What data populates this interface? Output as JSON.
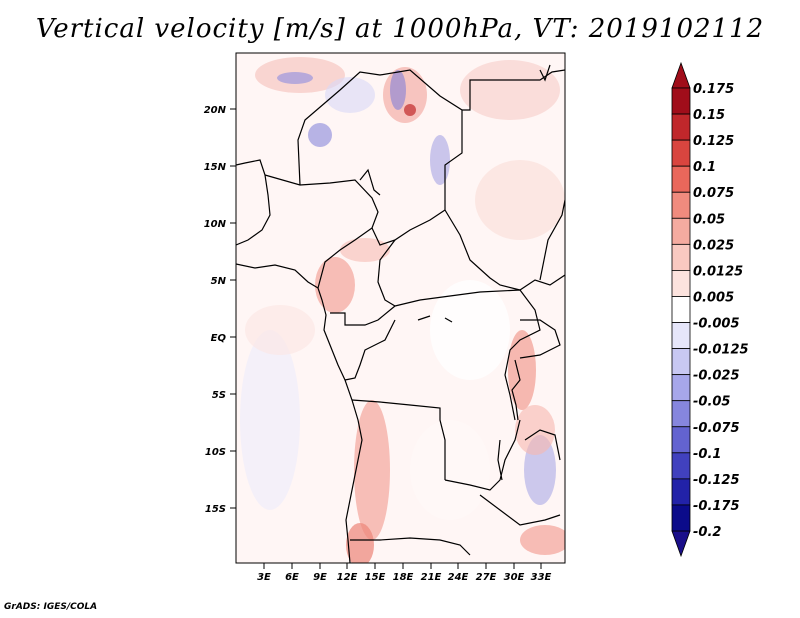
{
  "title": "Vertical velocity [m/s] at 1000hPa, VT: 2019102112",
  "credit": "GrADS: IGES/COLA",
  "map": {
    "lat_labels": [
      "20N",
      "15N",
      "10N",
      "5N",
      "EQ",
      "5S",
      "10S",
      "15S"
    ],
    "lon_labels": [
      "3E",
      "6E",
      "9E",
      "12E",
      "15E",
      "18E",
      "21E",
      "24E",
      "27E",
      "30E",
      "33E"
    ],
    "lat_range": [
      -20,
      24.5
    ],
    "lon_range": [
      0,
      35.5
    ]
  },
  "colorbar": {
    "labels": [
      "0.175",
      "0.15",
      "0.125",
      "0.1",
      "0.075",
      "0.05",
      "0.025",
      "0.0125",
      "0.005",
      "-0.005",
      "-0.0125",
      "-0.025",
      "-0.05",
      "-0.075",
      "-0.1",
      "-0.125",
      "-0.175",
      "-0.2"
    ],
    "colors": [
      "#a00d1a",
      "#c0272b",
      "#d9453f",
      "#e9675b",
      "#f08b7e",
      "#f5aba0",
      "#f9c9c1",
      "#fce3de",
      "#ffffff",
      "#e6e6fa",
      "#c8c8f2",
      "#a7a7ea",
      "#8686de",
      "#6363d0",
      "#4141be",
      "#2222a8",
      "#0b0b8a"
    ],
    "top_color": "#a00d1a",
    "bottom_color": "#1a0f8a"
  }
}
